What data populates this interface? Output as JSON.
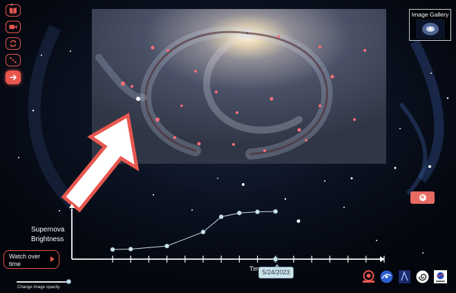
{
  "toolbar": {
    "items": [
      {
        "icon": "book-icon",
        "active": false
      },
      {
        "icon": "video-camera-icon",
        "active": false
      },
      {
        "icon": "refresh-icon",
        "active": false
      },
      {
        "icon": "scatter-dots-icon",
        "active": false
      },
      {
        "icon": "arrow-right-icon",
        "active": true
      }
    ]
  },
  "gallery": {
    "label": "Image Gallery"
  },
  "chart": {
    "ylabel_line1": "Supernova",
    "ylabel_line2": "Brightness",
    "xlabel_partial": "Tim",
    "selected_date": "5/24/2023"
  },
  "chart_data": {
    "type": "line",
    "ylabel": "Supernova Brightness",
    "xlabel": "Time",
    "x": [
      0,
      1,
      3,
      5,
      6,
      7,
      8,
      9
    ],
    "values": [
      0.0,
      0.01,
      0.09,
      0.46,
      0.86,
      0.96,
      0.99,
      1.0
    ],
    "xlim": [
      0,
      15
    ],
    "ylim": [
      0,
      1
    ],
    "num_ticks": 16,
    "selected_index": 9
  },
  "watch_button": {
    "label_line1": "Watch over",
    "label_line2": "time"
  },
  "opacity_slider": {
    "label": "Change image opacity",
    "value": 0.95
  },
  "logos": [
    "cosmicds-logo",
    "nasa-astrophysics-logo",
    "partner-logo",
    "spiral-logo",
    "nasa-partner-logo"
  ],
  "colors": {
    "accent": "#e8574f",
    "tooltip": "#cde2ea"
  }
}
